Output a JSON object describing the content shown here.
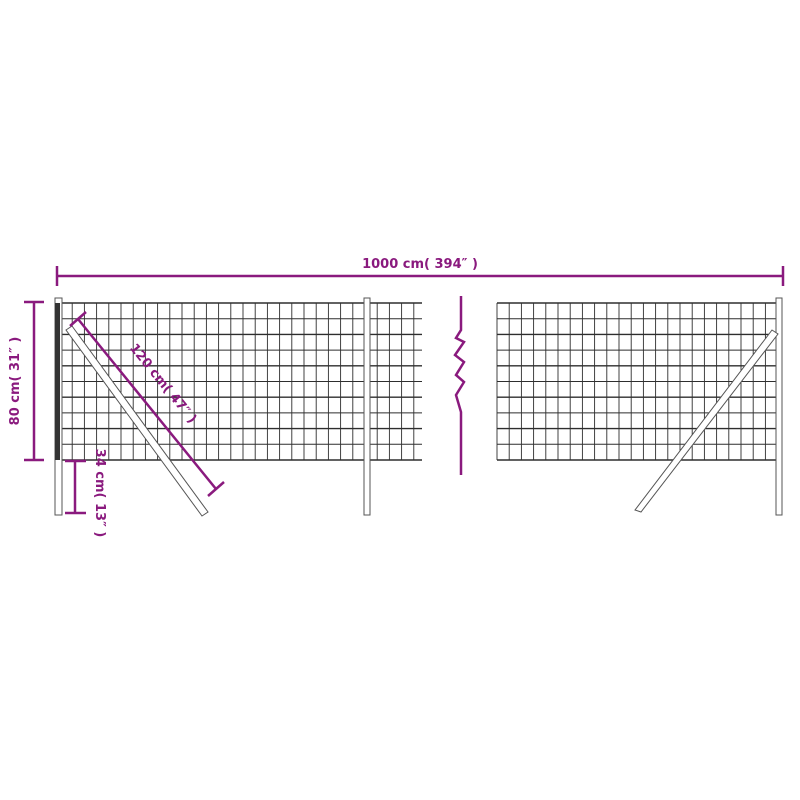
{
  "colors": {
    "dimension": "#8a1a7e",
    "mesh": "#2e2e2e",
    "post": "#555555"
  },
  "dimensions": {
    "total_length": "1000 cm( 394″ )",
    "height": "80 cm( 31″ )",
    "brace_length": "120 cm( 47″ )",
    "ground_depth": "34 cm( 13″ )"
  },
  "icons": [
    "break-line-icon"
  ]
}
